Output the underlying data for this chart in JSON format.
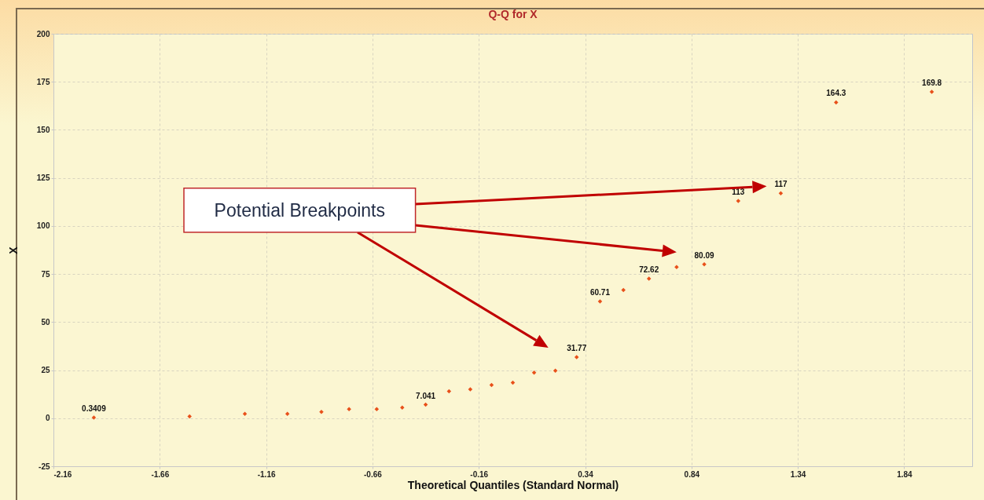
{
  "chart_data": {
    "type": "scatter",
    "title": "Q-Q for X",
    "xlabel": "Theoretical Quantiles (Standard Normal)",
    "ylabel": "X",
    "annotations": [
      "Potential Breakpoints"
    ],
    "x": [
      -1.97,
      -1.52,
      -1.26,
      -1.06,
      -0.9,
      -0.77,
      -0.64,
      -0.52,
      -0.41,
      -0.3,
      -0.2,
      -0.1,
      0.0,
      0.1,
      0.2,
      0.3,
      0.41,
      0.52,
      0.64,
      0.77,
      0.9,
      1.06,
      1.26,
      1.52,
      1.97
    ],
    "series": [
      {
        "color": "#e8501a",
        "values": [
          0.3409,
          0.9,
          2.3,
          2.3,
          3.3,
          4.7,
          4.7,
          5.5,
          7.041,
          14.0,
          15.0,
          17.3,
          18.5,
          23.7,
          24.7,
          31.77,
          60.71,
          66.7,
          72.62,
          78.6,
          80.09,
          113,
          117,
          164.3,
          169.8
        ],
        "value_labels": [
          "0.3409",
          null,
          null,
          null,
          null,
          null,
          null,
          null,
          "7.041",
          null,
          null,
          null,
          null,
          null,
          null,
          "31.77",
          "60.71",
          null,
          "72.62",
          null,
          "80.09",
          "113",
          "117",
          "164.3",
          "169.8"
        ]
      }
    ],
    "xlim": [
      -2.16,
      2.16
    ],
    "xticks": [
      -2.16,
      -1.66,
      -1.16,
      -0.66,
      -0.16,
      0.34,
      0.84,
      1.34,
      1.84
    ],
    "ylim": [
      -25,
      200
    ],
    "yticks": [
      -25,
      0,
      25,
      50,
      75,
      100,
      125,
      150,
      175,
      200
    ],
    "grid": true,
    "marker": "diamond"
  }
}
